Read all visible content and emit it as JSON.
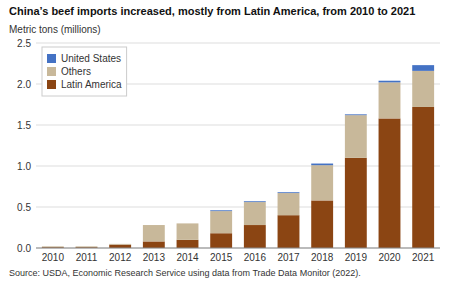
{
  "chart_data": {
    "type": "bar",
    "stacked": true,
    "title": "China’s beef imports increased, mostly from Latin America, from 2010 to 2021",
    "ylabel": "Metric tons (millions)",
    "source": "Source: USDA, Economic Research Service using data from Trade Data Monitor (2022).",
    "categories": [
      "2010",
      "2011",
      "2012",
      "2013",
      "2014",
      "2015",
      "2016",
      "2017",
      "2018",
      "2019",
      "2020",
      "2021"
    ],
    "series": [
      {
        "name": "Latin America",
        "color": "#8B4513",
        "values": [
          0.01,
          0.01,
          0.04,
          0.08,
          0.1,
          0.18,
          0.28,
          0.4,
          0.58,
          1.1,
          1.58,
          1.72
        ]
      },
      {
        "name": "Others",
        "color": "#C8B89A",
        "values": [
          0.01,
          0.01,
          0.01,
          0.2,
          0.2,
          0.27,
          0.28,
          0.27,
          0.43,
          0.52,
          0.44,
          0.44
        ]
      },
      {
        "name": "United States",
        "color": "#4472C4",
        "values": [
          0.0,
          0.0,
          0.0,
          0.0,
          0.0,
          0.01,
          0.01,
          0.01,
          0.02,
          0.01,
          0.02,
          0.07
        ]
      }
    ],
    "ylim": [
      0,
      2.5
    ],
    "yticks": [
      {
        "value": 0,
        "label": "0.0"
      },
      0.5,
      {
        "value": 1,
        "label": "1.0"
      },
      1.5,
      {
        "value": 2,
        "label": "2.0"
      },
      2.5
    ],
    "grid": true,
    "legend": "upper left"
  }
}
